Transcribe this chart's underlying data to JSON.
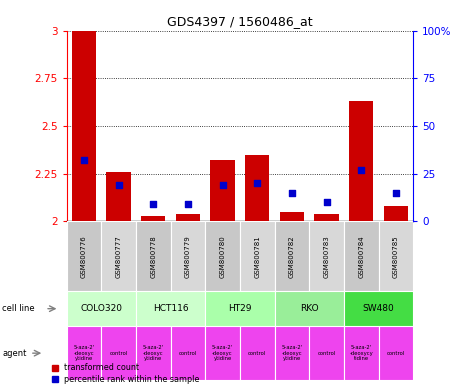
{
  "title": "GDS4397 / 1560486_at",
  "samples": [
    "GSM800776",
    "GSM800777",
    "GSM800778",
    "GSM800779",
    "GSM800780",
    "GSM800781",
    "GSM800782",
    "GSM800783",
    "GSM800784",
    "GSM800785"
  ],
  "red_values": [
    3.0,
    2.26,
    2.03,
    2.04,
    2.32,
    2.35,
    2.05,
    2.04,
    2.63,
    2.08
  ],
  "blue_percentile": [
    32,
    19,
    9,
    9,
    19,
    20,
    15,
    10,
    27,
    15
  ],
  "ylim_left": [
    2.0,
    3.0
  ],
  "ylim_right": [
    0,
    100
  ],
  "yticks_left": [
    2.0,
    2.25,
    2.5,
    2.75,
    3.0
  ],
  "yticks_right": [
    0,
    25,
    50,
    75,
    100
  ],
  "ytick_labels_left": [
    "2",
    "2.25",
    "2.5",
    "2.75",
    "3"
  ],
  "ytick_labels_right": [
    "0",
    "25",
    "50",
    "75",
    "100%"
  ],
  "cell_line_data": [
    {
      "label": "COLO320",
      "start": 0,
      "end": 2,
      "color": "#ccffcc"
    },
    {
      "label": "HCT116",
      "start": 2,
      "end": 4,
      "color": "#ccffcc"
    },
    {
      "label": "HT29",
      "start": 4,
      "end": 6,
      "color": "#aaffaa"
    },
    {
      "label": "RKO",
      "start": 6,
      "end": 8,
      "color": "#99ee99"
    },
    {
      "label": "SW480",
      "start": 8,
      "end": 10,
      "color": "#44dd44"
    }
  ],
  "agent_labels": [
    "5-aza-2'\n-deoxyc\nytidine",
    "control",
    "5-aza-2'\n-deoxyc\nytidine",
    "control",
    "5-aza-2'\n-deoxyc\nytidine",
    "control",
    "5-aza-2'\n-deoxyc\nytidine",
    "control",
    "5-aza-2'\n-deoxycy\ntidine",
    "control"
  ],
  "agent_color": "#ee44ee",
  "bar_color": "#cc0000",
  "dot_color": "#0000cc",
  "bar_bottom": 2.0,
  "bar_width": 0.7,
  "dot_size": 25,
  "sample_colors_alt": [
    "#c8c8c8",
    "#d8d8d8"
  ]
}
